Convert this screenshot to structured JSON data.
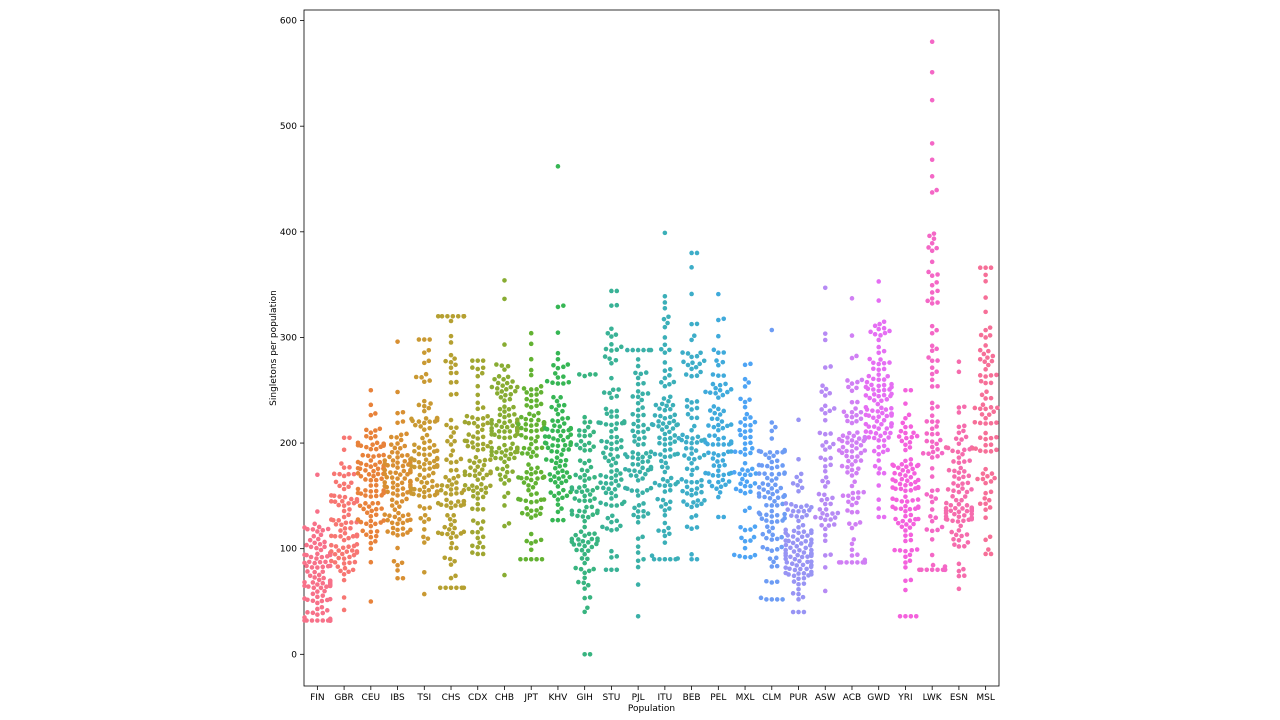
{
  "chart_data": {
    "type": "swarm",
    "title": "",
    "xlabel": "Population",
    "ylabel": "Singletons per population",
    "ylim": [
      -30,
      610
    ],
    "yticks": [
      0,
      100,
      200,
      300,
      400,
      500,
      600
    ],
    "grid": false,
    "legend": "none",
    "categories": [
      "FIN",
      "GBR",
      "CEU",
      "IBS",
      "TSI",
      "CHS",
      "CDX",
      "CHB",
      "JPT",
      "KHV",
      "GIH",
      "STU",
      "PJL",
      "ITU",
      "BEB",
      "PEL",
      "MXL",
      "CLM",
      "PUR",
      "ASW",
      "ACB",
      "GWD",
      "YRI",
      "LWK",
      "ESN",
      "MSL"
    ],
    "colors": [
      "#f77189",
      "#f77672",
      "#e8823a",
      "#d88f32",
      "#c99932",
      "#b5a031",
      "#a0a631",
      "#88ac32",
      "#63b232",
      "#36b654",
      "#38b480",
      "#39b296",
      "#3ab0a7",
      "#3bafb8",
      "#3dadc8",
      "#3faadb",
      "#4ea4f4",
      "#6d9cf4",
      "#9894f4",
      "#b68af4",
      "#d07ff4",
      "#e56ef3",
      "#f461dd",
      "#f467c6",
      "#f56cad",
      "#f66f98"
    ],
    "series": [
      {
        "category": "FIN",
        "n": 100,
        "median": 75,
        "q1": 55,
        "q3": 95,
        "min": 32,
        "max": 170
      },
      {
        "category": "GBR",
        "n": 90,
        "median": 115,
        "q1": 95,
        "q3": 140,
        "min": 42,
        "max": 205
      },
      {
        "category": "CEU",
        "n": 100,
        "median": 162,
        "q1": 140,
        "q3": 185,
        "min": 50,
        "max": 250
      },
      {
        "category": "IBS",
        "n": 105,
        "median": 165,
        "q1": 140,
        "q3": 190,
        "min": 72,
        "max": 296
      },
      {
        "category": "TSI",
        "n": 105,
        "median": 185,
        "q1": 160,
        "q3": 215,
        "min": 57,
        "max": 298
      },
      {
        "category": "CHS",
        "n": 105,
        "median": 165,
        "q1": 130,
        "q3": 245,
        "min": 63,
        "max": 320
      },
      {
        "category": "CDX",
        "n": 95,
        "median": 170,
        "q1": 145,
        "q3": 205,
        "min": 95,
        "max": 278
      },
      {
        "category": "CHB",
        "n": 105,
        "median": 215,
        "q1": 185,
        "q3": 240,
        "min": 75,
        "max": 354
      },
      {
        "category": "JPT",
        "n": 105,
        "median": 185,
        "q1": 150,
        "q3": 215,
        "min": 90,
        "max": 304
      },
      {
        "category": "KHV",
        "n": 100,
        "median": 205,
        "q1": 180,
        "q3": 240,
        "min": 127,
        "max": 462
      },
      {
        "category": "GIH",
        "n": 105,
        "median": 130,
        "q1": 105,
        "q3": 170,
        "min": 0,
        "max": 265
      },
      {
        "category": "STU",
        "n": 100,
        "median": 180,
        "q1": 145,
        "q3": 230,
        "min": 80,
        "max": 344
      },
      {
        "category": "PJL",
        "n": 95,
        "median": 190,
        "q1": 150,
        "q3": 235,
        "min": 36,
        "max": 288
      },
      {
        "category": "ITU",
        "n": 105,
        "median": 200,
        "q1": 155,
        "q3": 250,
        "min": 90,
        "max": 399
      },
      {
        "category": "BEB",
        "n": 90,
        "median": 205,
        "q1": 175,
        "q3": 255,
        "min": 90,
        "max": 380
      },
      {
        "category": "PEL",
        "n": 85,
        "median": 195,
        "q1": 170,
        "q3": 230,
        "min": 130,
        "max": 341
      },
      {
        "category": "MXL",
        "n": 65,
        "median": 175,
        "q1": 145,
        "q3": 205,
        "min": 92,
        "max": 275
      },
      {
        "category": "CLM",
        "n": 95,
        "median": 140,
        "q1": 110,
        "q3": 165,
        "min": 52,
        "max": 307
      },
      {
        "category": "PUR",
        "n": 105,
        "median": 100,
        "q1": 80,
        "q3": 125,
        "min": 40,
        "max": 222
      },
      {
        "category": "ASW",
        "n": 62,
        "median": 160,
        "q1": 140,
        "q3": 205,
        "min": 60,
        "max": 347
      },
      {
        "category": "ACB",
        "n": 95,
        "median": 185,
        "q1": 145,
        "q3": 215,
        "min": 87,
        "max": 337
      },
      {
        "category": "GWD",
        "n": 110,
        "median": 235,
        "q1": 210,
        "q3": 265,
        "min": 130,
        "max": 353
      },
      {
        "category": "YRI",
        "n": 105,
        "median": 160,
        "q1": 130,
        "q3": 185,
        "min": 36,
        "max": 250
      },
      {
        "category": "LWK",
        "n": 95,
        "median": 230,
        "q1": 170,
        "q3": 320,
        "min": 80,
        "max": 580
      },
      {
        "category": "ESN",
        "n": 100,
        "median": 145,
        "q1": 125,
        "q3": 175,
        "min": 62,
        "max": 277
      },
      {
        "category": "MSL",
        "n": 85,
        "median": 220,
        "q1": 170,
        "q3": 260,
        "min": 95,
        "max": 366
      }
    ]
  }
}
